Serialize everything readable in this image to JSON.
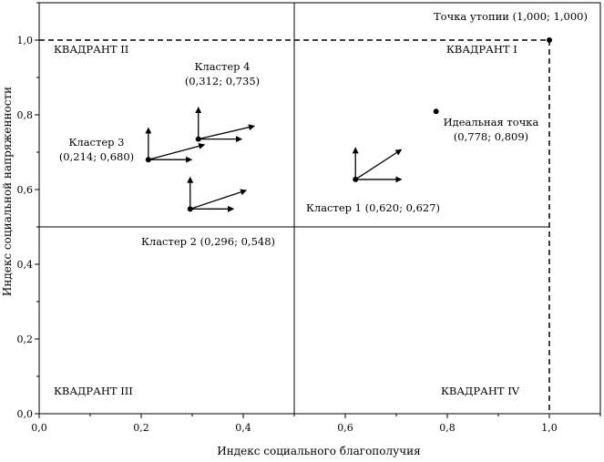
{
  "chart_data": {
    "type": "scatter",
    "xlabel": "Индекс социального благополучия",
    "ylabel": "Индекс социальной напряженности",
    "xlim": [
      0,
      1.1
    ],
    "ylim": [
      0,
      1.1
    ],
    "xticks": [
      "0,0",
      "0,2",
      "0,4",
      "0,6",
      "0,8",
      "1,0"
    ],
    "yticks": [
      "0,0",
      "0,2",
      "0,4",
      "0,6",
      "0,8",
      "1,0"
    ],
    "grid": false,
    "quadrant_lines": {
      "x": 0.5,
      "y": 0.5
    },
    "quadrants": [
      "КВАДРАНТ I",
      "КВАДРАНТ II",
      "КВАДРАНТ III",
      "КВАДРАНТ IV"
    ],
    "points": [
      {
        "label": "Кластер 1 (0,620; 0,627)",
        "x": 0.62,
        "y": 0.627,
        "vectors": [
          {
            "dx": 0.0,
            "dy": 0.085
          },
          {
            "dx": 0.09,
            "dy": 0.08
          },
          {
            "dx": 0.09,
            "dy": 0.0
          }
        ]
      },
      {
        "label": "Кластер 2 (0,296; 0,548)",
        "x": 0.296,
        "y": 0.548,
        "vectors": [
          {
            "dx": 0.0,
            "dy": 0.085
          },
          {
            "dx": 0.11,
            "dy": 0.05
          },
          {
            "dx": 0.085,
            "dy": 0.0
          }
        ]
      },
      {
        "label": "Кластер 3",
        "label2": "(0,214; 0,680)",
        "x": 0.214,
        "y": 0.68,
        "vectors": [
          {
            "dx": 0.0,
            "dy": 0.085
          },
          {
            "dx": 0.11,
            "dy": 0.04
          },
          {
            "dx": 0.085,
            "dy": 0.0
          }
        ]
      },
      {
        "label": "Кластер 4",
        "label2": "(0,312; 0,735)",
        "x": 0.312,
        "y": 0.735,
        "vectors": [
          {
            "dx": 0.0,
            "dy": 0.085
          },
          {
            "dx": 0.11,
            "dy": 0.035
          },
          {
            "dx": 0.085,
            "dy": 0.0
          }
        ]
      },
      {
        "label": "Идеальная точка",
        "label2": "(0,778; 0,809)",
        "x": 0.778,
        "y": 0.809,
        "vectors": []
      },
      {
        "label": "Точка утопии (1,000; 1,000)",
        "x": 1.0,
        "y": 1.0,
        "vectors": []
      }
    ]
  }
}
